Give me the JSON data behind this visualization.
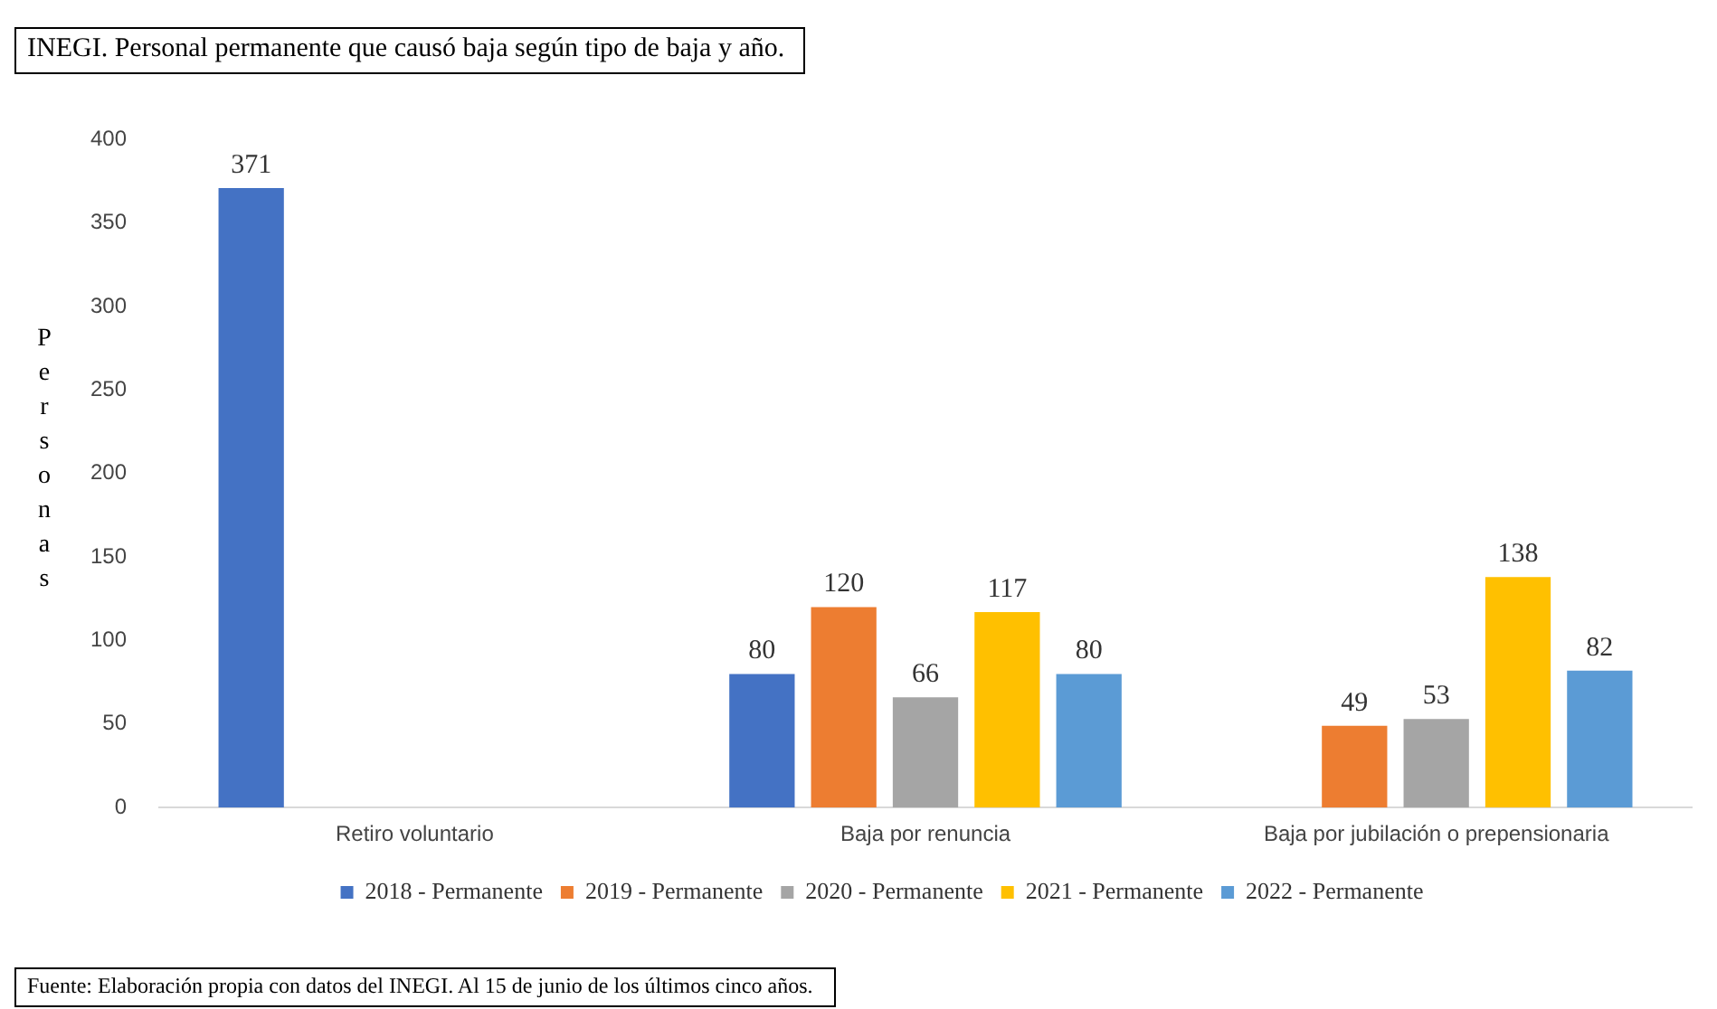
{
  "chart_data": {
    "type": "bar",
    "title": "INEGI. Personal permanente que causó baja según tipo de baja y año.",
    "ylabel": "Personas",
    "annotations": [
      "Fuente: Elaboración propia con datos del INEGI. Al 15 de junio de los últimos cinco años."
    ],
    "categories": [
      "Retiro voluntario",
      "Baja por renuncia",
      "Baja por jubilación o prepensionaria"
    ],
    "series": [
      {
        "name": "2018 - Permanente",
        "color": "#4472c4",
        "values": [
          371,
          80,
          null
        ]
      },
      {
        "name": "2019 - Permanente",
        "color": "#ed7d31",
        "values": [
          null,
          120,
          49
        ]
      },
      {
        "name": "2020 - Permanente",
        "color": "#a5a5a5",
        "values": [
          null,
          66,
          53
        ]
      },
      {
        "name": "2021 - Permanente",
        "color": "#ffc000",
        "values": [
          null,
          117,
          138
        ]
      },
      {
        "name": "2022 - Permanente",
        "color": "#5b9bd5",
        "values": [
          null,
          80,
          82
        ]
      }
    ],
    "ylim": [
      0,
      400
    ],
    "yticks": [
      0,
      50,
      100,
      150,
      200,
      250,
      300,
      350,
      400
    ],
    "grid": false,
    "legend": "bottom",
    "data_labels": true
  }
}
